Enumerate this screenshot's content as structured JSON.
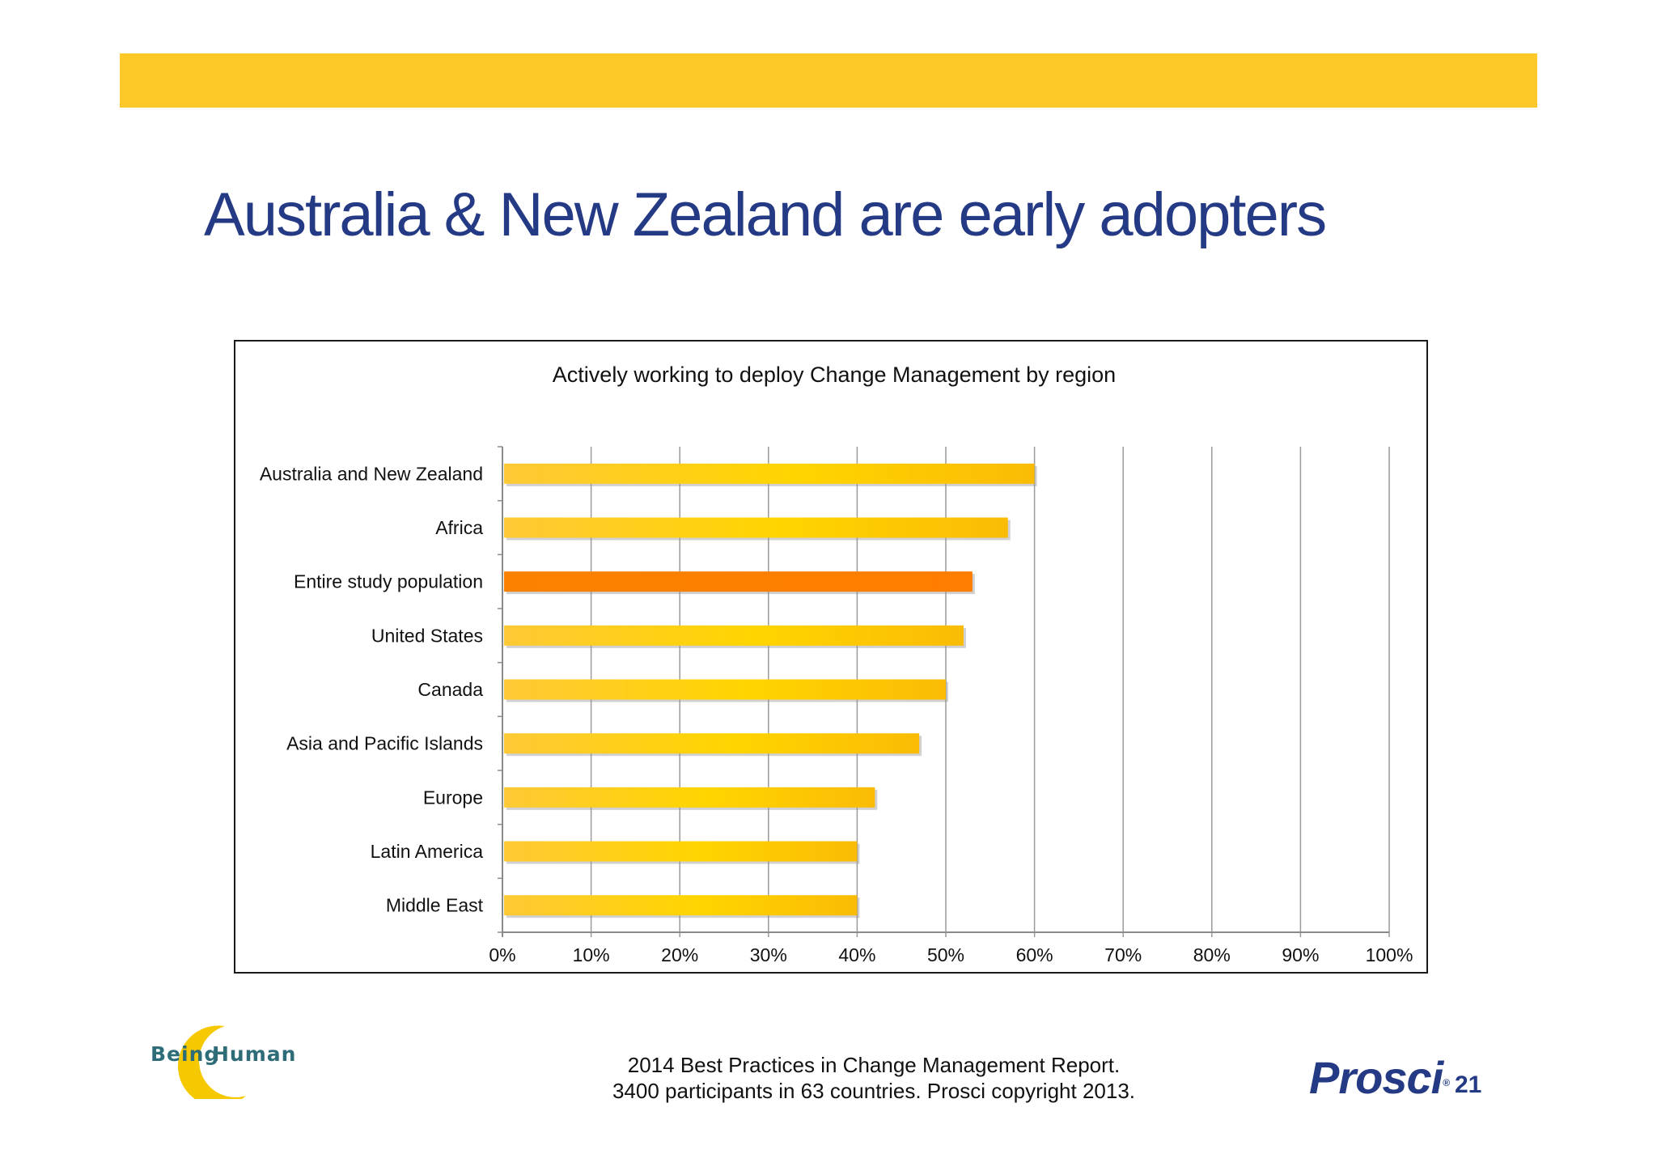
{
  "slide": {
    "title": "Australia & New Zealand are early adopters",
    "page_number": "21",
    "footer_line1": "2014 Best Practices in Change Management Report.",
    "footer_line2": "3400 participants in 63 countries.  Prosci copyright 2013.",
    "logo_left_word1": "Being",
    "logo_left_word2": "Human",
    "logo_right": "Prosci",
    "logo_right_mark": "®"
  },
  "colors": {
    "band": "#fcc928",
    "title": "#253a84",
    "bar": "#fcc21b",
    "bar_highlight": "#ff8000"
  },
  "chart_data": {
    "type": "bar",
    "orientation": "horizontal",
    "title": "Actively working to deploy Change Management by region",
    "categories": [
      "Australia and New Zealand",
      "Africa",
      "Entire study population",
      "United States",
      "Canada",
      "Asia and Pacific Islands",
      "Europe",
      "Latin America",
      "Middle East"
    ],
    "values": [
      60,
      57,
      53,
      52,
      50,
      47,
      42,
      40,
      40
    ],
    "highlight_category": "Entire study population",
    "xlim": [
      0,
      100
    ],
    "x_ticks": [
      "0%",
      "10%",
      "20%",
      "30%",
      "40%",
      "50%",
      "60%",
      "70%",
      "80%",
      "90%",
      "100%"
    ],
    "xlabel": "",
    "ylabel": "",
    "grid": "vertical",
    "legend": "none"
  }
}
